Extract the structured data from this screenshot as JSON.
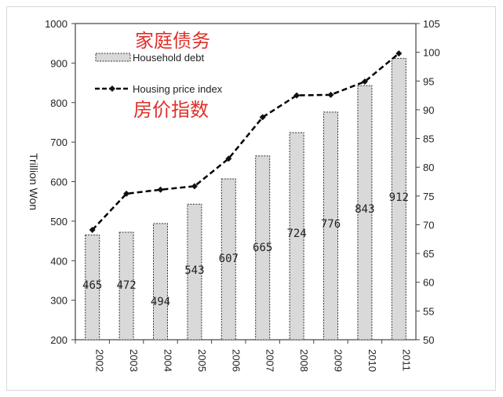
{
  "chart_data": {
    "type": "bar",
    "categories": [
      "2002",
      "2003",
      "2004",
      "2005",
      "2006",
      "2007",
      "2008",
      "2009",
      "2010",
      "2011"
    ],
    "series": [
      {
        "name": "Household debt",
        "type": "bar",
        "axis": "left",
        "values": [
          465,
          472,
          494,
          543,
          607,
          665,
          724,
          776,
          843,
          912
        ],
        "labels": [
          "465",
          "472",
          "494",
          "543",
          "607",
          "665",
          "724",
          "776",
          "843",
          "912"
        ]
      },
      {
        "name": "Housing price index",
        "type": "line",
        "axis": "right",
        "values": [
          69.1,
          75.4,
          76.1,
          76.7,
          81.5,
          88.7,
          92.5,
          92.6,
          94.9,
          99.8
        ]
      }
    ],
    "ylabel": "Trillion Won",
    "ylim": [
      200,
      1000
    ],
    "yticks": [
      "200",
      "300",
      "400",
      "500",
      "600",
      "700",
      "800",
      "900",
      "1000"
    ],
    "y2lim": [
      50,
      105
    ],
    "y2ticks": [
      "50",
      "55",
      "60",
      "65",
      "70",
      "75",
      "80",
      "85",
      "90",
      "95",
      "100",
      "105"
    ],
    "legend": "top-left",
    "annotations": [
      "家庭债务",
      "房价指数"
    ],
    "colors": {
      "bar": "#d9d9d9",
      "line": "#000000",
      "annotation": "#e0302a"
    }
  }
}
